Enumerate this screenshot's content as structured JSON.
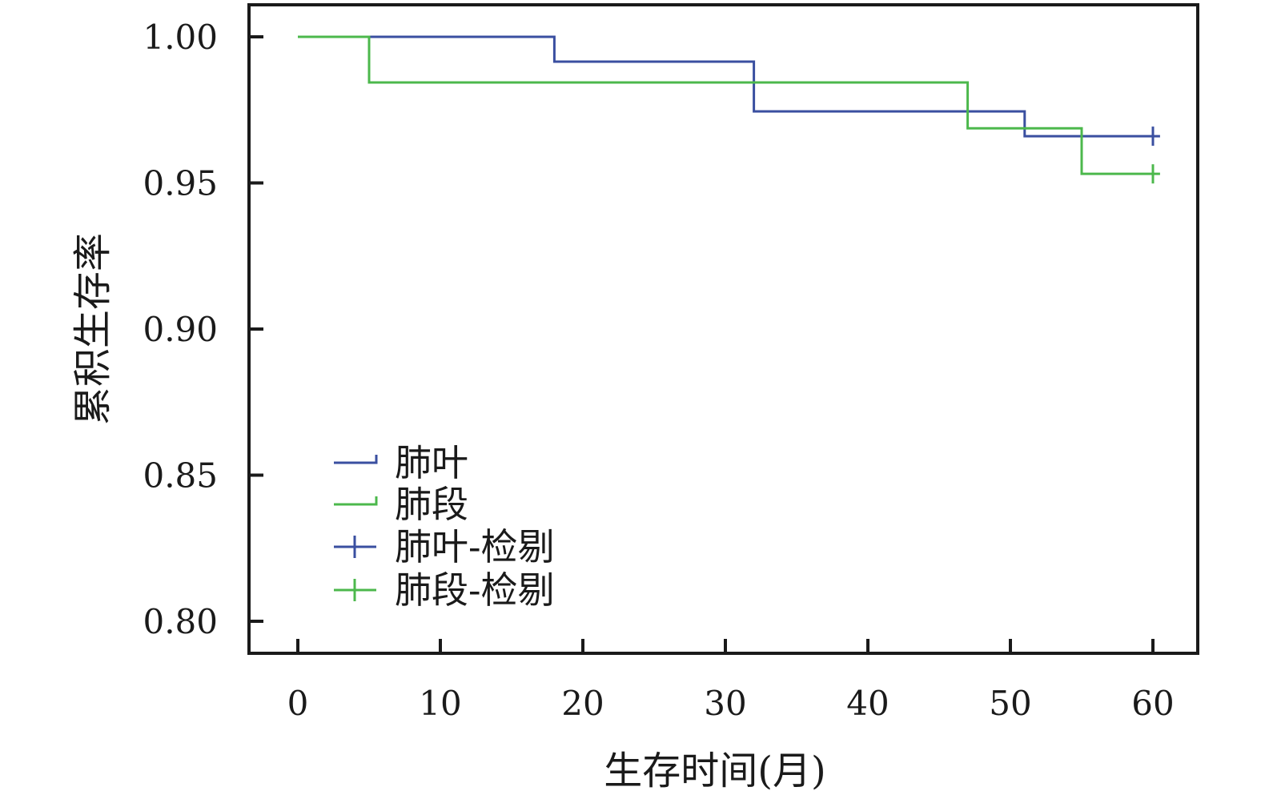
{
  "chart_data": {
    "type": "line",
    "step": true,
    "xlabel": "生存时间(月)",
    "ylabel": "累积生存率",
    "xlim": [
      0,
      60
    ],
    "ylim": [
      0.8,
      1.0
    ],
    "x_ticks": [
      0,
      10,
      20,
      30,
      40,
      50,
      60
    ],
    "x_tick_labels": [
      "0",
      "10",
      "20",
      "30",
      "40",
      "50",
      "60"
    ],
    "y_ticks": [
      0.8,
      0.85,
      0.9,
      0.95,
      1.0
    ],
    "y_tick_labels": [
      "0.80",
      "0.85",
      "0.90",
      "0.95",
      "1.00"
    ],
    "grid": false,
    "legend_position": "lower-left",
    "legend": [
      {
        "label": "肺叶",
        "marker": "step",
        "color": "#3a4fa0"
      },
      {
        "label": "肺段",
        "marker": "step",
        "color": "#4cb84c"
      },
      {
        "label": "肺叶-检剔",
        "marker": "plus",
        "color": "#3a4fa0"
      },
      {
        "label": "肺段-检剔",
        "marker": "plus",
        "color": "#4cb84c"
      }
    ],
    "series": [
      {
        "name": "肺叶",
        "color": "#3a4fa0",
        "x": [
          0,
          18,
          32,
          51,
          60.5
        ],
        "y": [
          1.0,
          0.9915,
          0.9745,
          0.966,
          0.966
        ],
        "censored": [
          {
            "x": 60,
            "y": 0.966
          }
        ]
      },
      {
        "name": "肺段",
        "color": "#4cb84c",
        "x": [
          0,
          5,
          47,
          55,
          60.5
        ],
        "y": [
          1.0,
          0.9844,
          0.9687,
          0.9531,
          0.9531
        ],
        "censored": [
          {
            "x": 60,
            "y": 0.9531
          }
        ]
      }
    ]
  }
}
